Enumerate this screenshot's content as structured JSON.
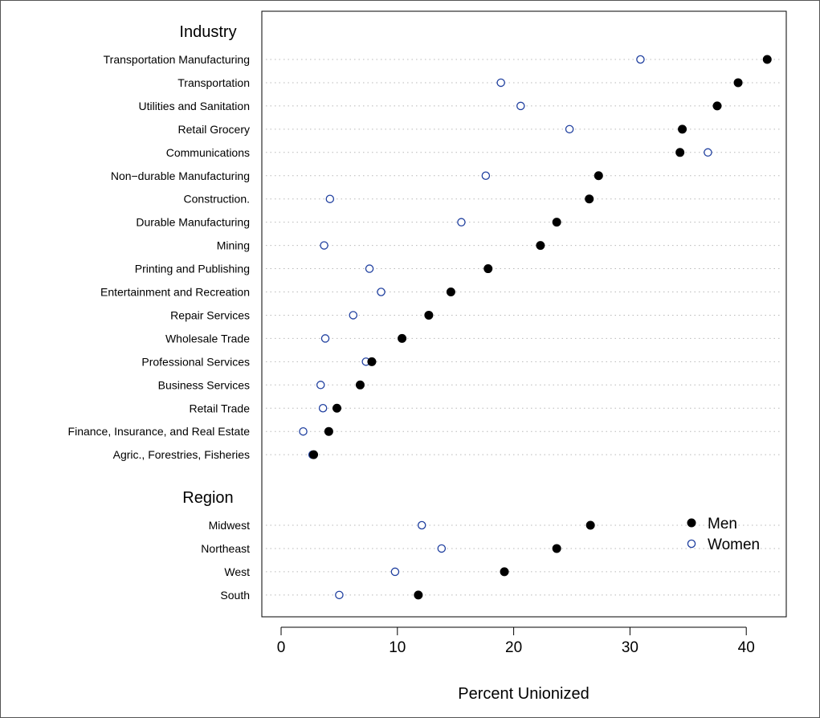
{
  "chart_data": {
    "type": "dot",
    "xlabel": "Percent Unionized",
    "xlim": [
      -2,
      43.5
    ],
    "xticks": [
      0,
      10,
      20,
      30,
      40
    ],
    "grid": "dotted horizontal guide lines",
    "legend_placement": "bottom-right inside plot",
    "series": [
      {
        "name": "Men",
        "marker": "filled-circle",
        "color": "#000000"
      },
      {
        "name": "Women",
        "marker": "open-circle",
        "color": "#1f3f9f"
      }
    ],
    "groups": [
      {
        "title": "Industry",
        "categories": [
          "Transportation Manufacturing",
          "Transportation",
          "Utilities and Sanitation",
          "Retail Grocery",
          "Communications",
          "Non−durable Manufacturing",
          "Construction.",
          "Durable Manufacturing",
          "Mining",
          "Printing and Publishing",
          "Entertainment and Recreation",
          "Repair Services",
          "Wholesale Trade",
          "Professional Services",
          "Business Services",
          "Retail Trade",
          "Finance, Insurance, and Real Estate",
          "Agric., Forestries, Fisheries"
        ],
        "men": [
          41.8,
          39.3,
          37.5,
          34.5,
          34.3,
          27.3,
          26.5,
          23.7,
          22.3,
          17.8,
          14.6,
          12.7,
          10.4,
          7.8,
          6.8,
          4.8,
          4.1,
          2.8
        ],
        "women": [
          30.9,
          18.9,
          20.6,
          24.8,
          36.7,
          17.6,
          4.2,
          15.5,
          3.7,
          7.6,
          8.6,
          6.2,
          3.8,
          7.3,
          3.4,
          3.6,
          1.9,
          2.7
        ]
      },
      {
        "title": "Region",
        "categories": [
          "Midwest",
          "Northeast",
          "West",
          "South"
        ],
        "men": [
          26.6,
          23.7,
          19.2,
          11.8
        ],
        "women": [
          12.1,
          13.8,
          9.8,
          5.0
        ]
      }
    ]
  }
}
